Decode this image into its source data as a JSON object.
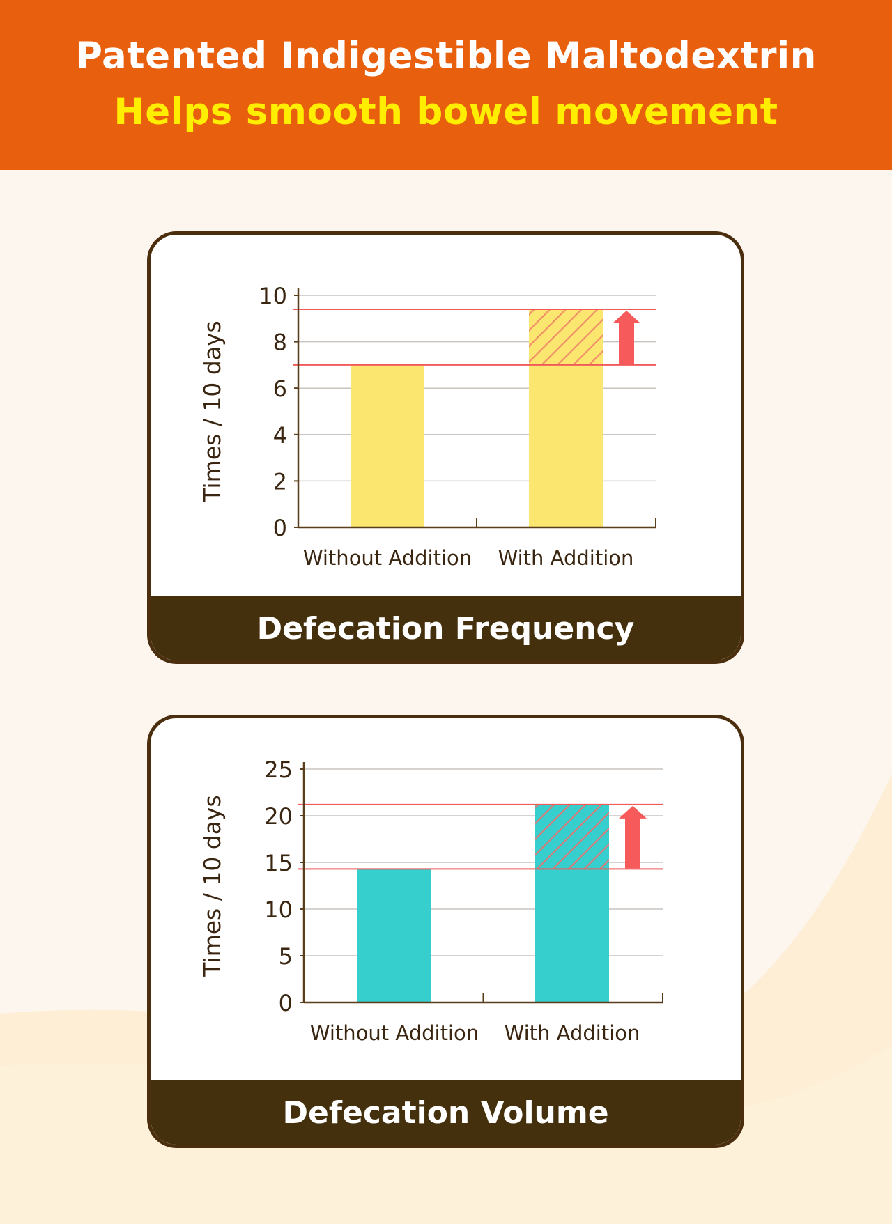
{
  "header": {
    "title": "Patented Indigestible Maltodextrin",
    "subtitle": "Helps smooth bowel movement"
  },
  "colors": {
    "header_bg": "#e8600e",
    "subtitle": "#ffee00",
    "card_border": "#4a2e0e",
    "footer_bg": "#45300d",
    "frequency_bar": "#fbe76f",
    "volume_bar": "#37cfcd",
    "increase_line": "#f25a5a",
    "arrow": "#f75a5a"
  },
  "chart_data": [
    {
      "type": "bar",
      "title": "Defecation Frequency",
      "ylabel": "Times / 10 days",
      "categories": [
        "Without Addition",
        "With Addition"
      ],
      "values": [
        7,
        9.4
      ],
      "baseline": 7,
      "ylim": [
        0,
        10
      ],
      "yticks": [
        0,
        2,
        4,
        6,
        8,
        10
      ],
      "grid": true,
      "bar_color": "#fbe76f",
      "hatch_color": "#f28d6a",
      "hatch_bg": "#fbe76f"
    },
    {
      "type": "bar",
      "title": "Defecation Volume",
      "ylabel": "Times / 10 days",
      "categories": [
        "Without Addition",
        "With Addition"
      ],
      "values": [
        14.3,
        21.2
      ],
      "baseline": 14.3,
      "ylim": [
        0,
        25
      ],
      "yticks": [
        0,
        5,
        10,
        15,
        20,
        25
      ],
      "grid": true,
      "bar_color": "#37cfcd",
      "hatch_color": "#d87b78",
      "hatch_bg": "#37cfcd"
    }
  ]
}
